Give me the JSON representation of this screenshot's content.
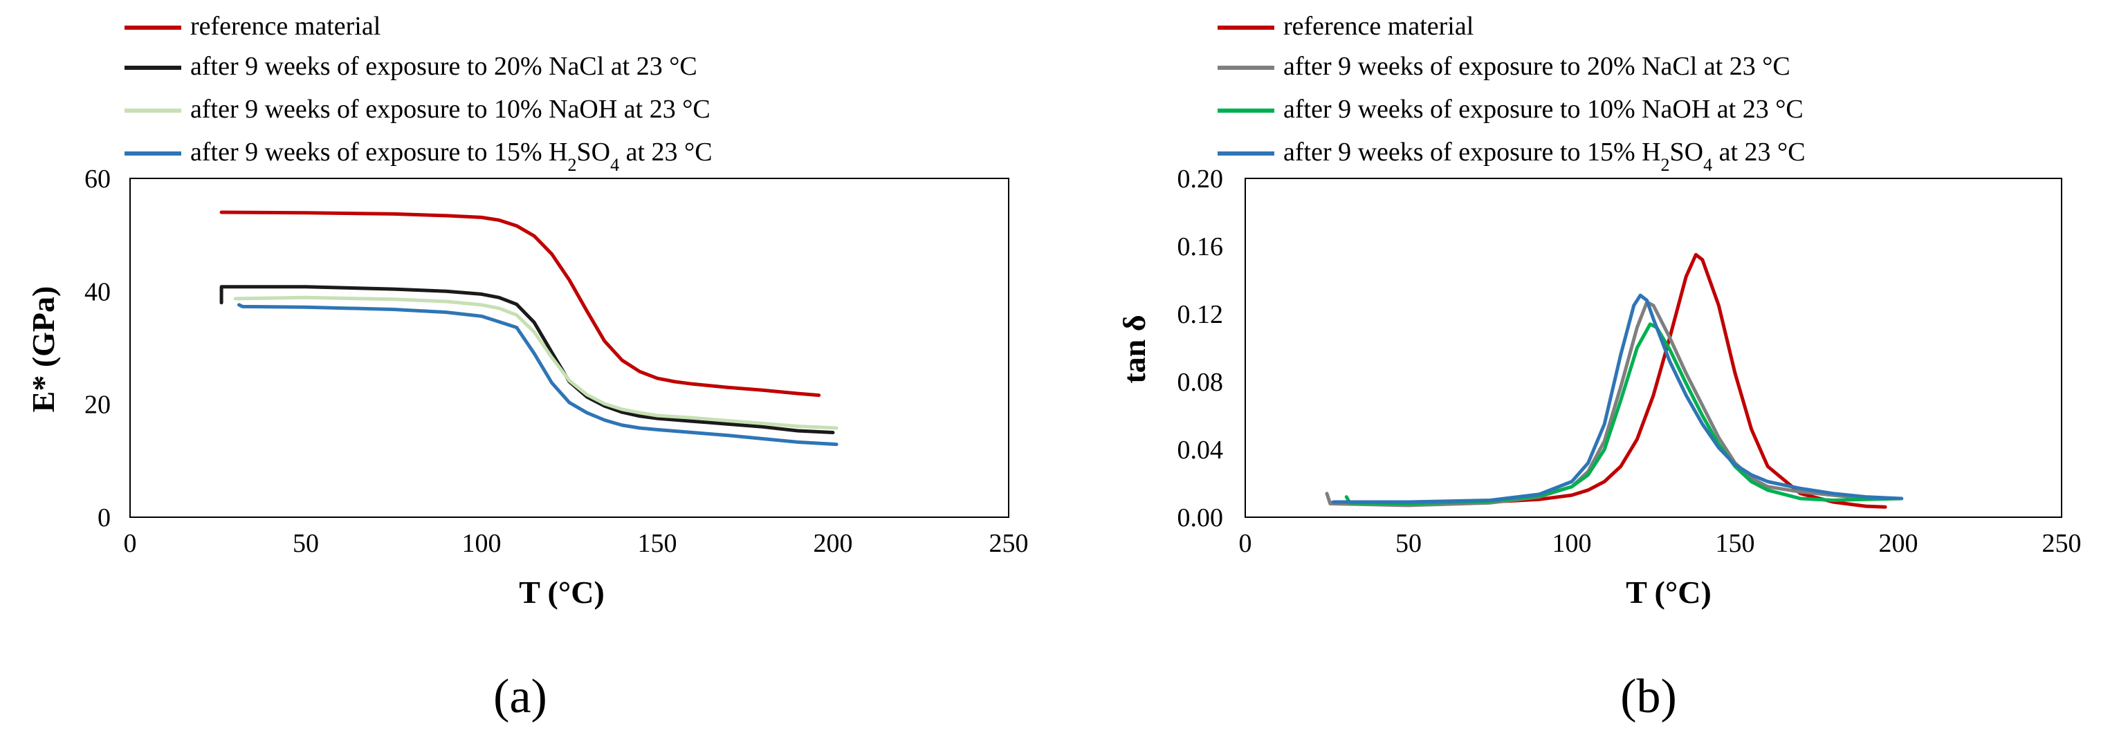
{
  "figure": {
    "panels_label": [
      "(a)",
      "(b)"
    ]
  },
  "chart_data": [
    {
      "type": "line",
      "panel_label": "(a)",
      "title": "",
      "xlabel": "T (°C)",
      "ylabel": "E* (GPa)",
      "xlim": [
        0,
        250
      ],
      "ylim": [
        0,
        60
      ],
      "xticks": [
        0,
        50,
        100,
        150,
        200,
        250
      ],
      "xtick_labels": [
        "0",
        "50",
        "100",
        "150",
        "200",
        "250"
      ],
      "yticks": [
        0,
        20,
        40,
        60
      ],
      "ytick_labels": [
        "0",
        "20",
        "40",
        "60"
      ],
      "grid": false,
      "legend_position": "top-left, above plot",
      "series": [
        {
          "name": "reference material",
          "color": "#c00000",
          "points": [
            [
              26,
              54
            ],
            [
              50,
              53.9
            ],
            [
              75,
              53.7
            ],
            [
              90,
              53.4
            ],
            [
              100,
              53.1
            ],
            [
              105,
              52.6
            ],
            [
              110,
              51.6
            ],
            [
              115,
              49.8
            ],
            [
              120,
              46.6
            ],
            [
              125,
              42
            ],
            [
              130,
              36.5
            ],
            [
              135,
              31.2
            ],
            [
              140,
              27.8
            ],
            [
              145,
              25.8
            ],
            [
              150,
              24.6
            ],
            [
              155,
              24
            ],
            [
              160,
              23.6
            ],
            [
              170,
              23
            ],
            [
              180,
              22.5
            ],
            [
              190,
              21.9
            ],
            [
              196,
              21.6
            ]
          ]
        },
        {
          "name": "after 9 weeks of exposure to 20% NaCl at 23 °C",
          "color": "#1a1a1a",
          "points": [
            [
              26,
              38
            ],
            [
              26,
              40.8
            ],
            [
              50,
              40.8
            ],
            [
              75,
              40.4
            ],
            [
              90,
              40
            ],
            [
              100,
              39.5
            ],
            [
              105,
              38.9
            ],
            [
              110,
              37.7
            ],
            [
              115,
              34.5
            ],
            [
              120,
              29.2
            ],
            [
              125,
              24
            ],
            [
              130,
              21.3
            ],
            [
              135,
              19.7
            ],
            [
              140,
              18.6
            ],
            [
              145,
              17.9
            ],
            [
              150,
              17.5
            ],
            [
              160,
              17
            ],
            [
              170,
              16.5
            ],
            [
              180,
              16
            ],
            [
              190,
              15.3
            ],
            [
              200,
              15
            ]
          ]
        },
        {
          "name": "after 9 weeks of exposure to 10% NaOH at 23 °C",
          "color": "#c6e0b4",
          "points": [
            [
              30,
              38.7
            ],
            [
              50,
              38.9
            ],
            [
              75,
              38.6
            ],
            [
              90,
              38.2
            ],
            [
              100,
              37.6
            ],
            [
              105,
              37
            ],
            [
              110,
              35.8
            ],
            [
              115,
              32.8
            ],
            [
              120,
              28.3
            ],
            [
              125,
              24.2
            ],
            [
              130,
              21.7
            ],
            [
              135,
              20.1
            ],
            [
              140,
              19.1
            ],
            [
              145,
              18.5
            ],
            [
              150,
              18
            ],
            [
              160,
              17.6
            ],
            [
              170,
              17.1
            ],
            [
              180,
              16.6
            ],
            [
              190,
              16.1
            ],
            [
              201,
              15.8
            ]
          ]
        },
        {
          "name": "after 9 weeks of exposure to 15% H2SO4 at 23 °C",
          "color": "#2e75b6",
          "points": [
            [
              31,
              37.6
            ],
            [
              32,
              37.3
            ],
            [
              50,
              37.2
            ],
            [
              75,
              36.8
            ],
            [
              90,
              36.3
            ],
            [
              100,
              35.6
            ],
            [
              105,
              34.6
            ],
            [
              110,
              33.6
            ],
            [
              115,
              29
            ],
            [
              120,
              23.8
            ],
            [
              125,
              20.3
            ],
            [
              130,
              18.5
            ],
            [
              135,
              17.2
            ],
            [
              140,
              16.3
            ],
            [
              145,
              15.8
            ],
            [
              150,
              15.5
            ],
            [
              160,
              15
            ],
            [
              170,
              14.5
            ],
            [
              180,
              13.9
            ],
            [
              190,
              13.3
            ],
            [
              201,
              12.9
            ]
          ]
        }
      ]
    },
    {
      "type": "line",
      "panel_label": "(b)",
      "title": "",
      "xlabel": "T (°C)",
      "ylabel": "tan δ",
      "xlim": [
        0,
        250
      ],
      "ylim": [
        0,
        0.2
      ],
      "xticks": [
        0,
        50,
        100,
        150,
        200,
        250
      ],
      "xtick_labels": [
        "0",
        "50",
        "100",
        "150",
        "200",
        "250"
      ],
      "yticks": [
        0,
        0.04,
        0.08,
        0.12,
        0.16,
        0.2
      ],
      "ytick_labels": [
        "0.00",
        "0.04",
        "0.08",
        "0.12",
        "0.16",
        "0.20"
      ],
      "grid": false,
      "legend_position": "top-left, above plot",
      "series": [
        {
          "name": "reference material",
          "color": "#c00000",
          "points": [
            [
              26,
              0.0085
            ],
            [
              50,
              0.008
            ],
            [
              75,
              0.009
            ],
            [
              90,
              0.0105
            ],
            [
              100,
              0.013
            ],
            [
              105,
              0.016
            ],
            [
              110,
              0.021
            ],
            [
              115,
              0.03
            ],
            [
              120,
              0.046
            ],
            [
              125,
              0.072
            ],
            [
              130,
              0.106
            ],
            [
              135,
              0.142
            ],
            [
              138,
              0.155
            ],
            [
              140,
              0.152
            ],
            [
              145,
              0.125
            ],
            [
              150,
              0.085
            ],
            [
              155,
              0.052
            ],
            [
              160,
              0.03
            ],
            [
              170,
              0.014
            ],
            [
              180,
              0.009
            ],
            [
              190,
              0.0065
            ],
            [
              196,
              0.006
            ]
          ]
        },
        {
          "name": "after 9 weeks of exposure to 20% NaCl at 23 °C",
          "color": "#7f7f7f",
          "points": [
            [
              25,
              0.014
            ],
            [
              26,
              0.008
            ],
            [
              50,
              0.007
            ],
            [
              75,
              0.0085
            ],
            [
              90,
              0.012
            ],
            [
              100,
              0.018
            ],
            [
              105,
              0.027
            ],
            [
              110,
              0.045
            ],
            [
              115,
              0.077
            ],
            [
              120,
              0.112
            ],
            [
              123,
              0.127
            ],
            [
              125,
              0.125
            ],
            [
              130,
              0.106
            ],
            [
              135,
              0.085
            ],
            [
              140,
              0.066
            ],
            [
              145,
              0.047
            ],
            [
              150,
              0.032
            ],
            [
              155,
              0.023
            ],
            [
              160,
              0.018
            ],
            [
              170,
              0.015
            ],
            [
              180,
              0.013
            ],
            [
              190,
              0.011
            ],
            [
              200,
              0.011
            ]
          ]
        },
        {
          "name": "after 9 weeks of exposure to 10% NaOH at 23 °C",
          "color": "#00b050",
          "points": [
            [
              31,
              0.012
            ],
            [
              32,
              0.0085
            ],
            [
              50,
              0.008
            ],
            [
              75,
              0.0095
            ],
            [
              90,
              0.0125
            ],
            [
              100,
              0.018
            ],
            [
              105,
              0.025
            ],
            [
              110,
              0.04
            ],
            [
              115,
              0.069
            ],
            [
              120,
              0.1
            ],
            [
              124,
              0.114
            ],
            [
              126,
              0.112
            ],
            [
              130,
              0.099
            ],
            [
              135,
              0.079
            ],
            [
              140,
              0.06
            ],
            [
              145,
              0.043
            ],
            [
              150,
              0.03
            ],
            [
              155,
              0.021
            ],
            [
              160,
              0.016
            ],
            [
              170,
              0.011
            ],
            [
              180,
              0.01
            ],
            [
              190,
              0.0105
            ],
            [
              201,
              0.011
            ]
          ]
        },
        {
          "name": "after 9 weeks of exposure to 15% H2SO4 at 23 °C",
          "color": "#2e75b6",
          "points": [
            [
              27,
              0.009
            ],
            [
              50,
              0.009
            ],
            [
              75,
              0.01
            ],
            [
              90,
              0.0135
            ],
            [
              100,
              0.021
            ],
            [
              105,
              0.032
            ],
            [
              110,
              0.055
            ],
            [
              115,
              0.096
            ],
            [
              119,
              0.125
            ],
            [
              121,
              0.131
            ],
            [
              123,
              0.128
            ],
            [
              125,
              0.117
            ],
            [
              130,
              0.092
            ],
            [
              135,
              0.072
            ],
            [
              140,
              0.055
            ],
            [
              145,
              0.041
            ],
            [
              150,
              0.031
            ],
            [
              155,
              0.025
            ],
            [
              160,
              0.021
            ],
            [
              170,
              0.017
            ],
            [
              180,
              0.014
            ],
            [
              190,
              0.012
            ],
            [
              201,
              0.011
            ]
          ]
        }
      ]
    }
  ]
}
